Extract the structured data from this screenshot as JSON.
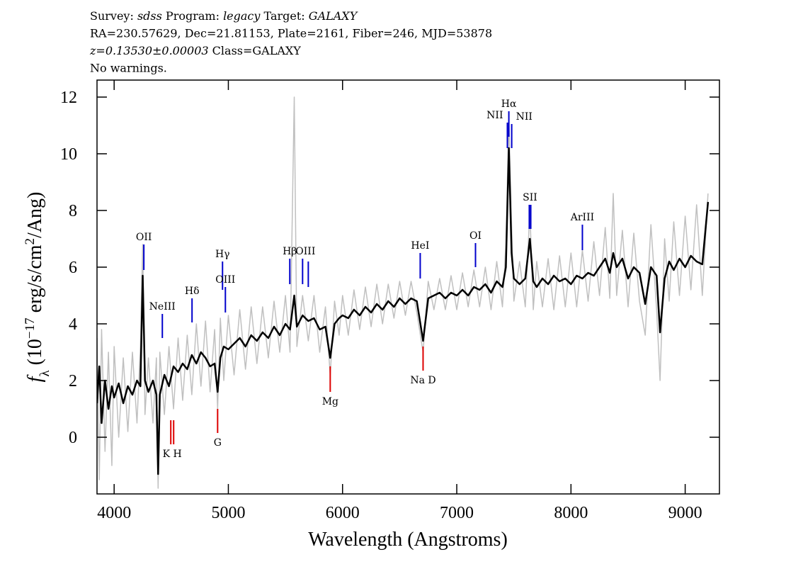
{
  "chart_data": {
    "type": "line",
    "header_lines": [
      [
        {
          "text": "Survey:"
        },
        {
          "text": "sdss",
          "italic": true
        },
        {
          "text": "Program:"
        },
        {
          "text": "legacy",
          "italic": true
        },
        {
          "text": "Target:"
        },
        {
          "text": "GALAXY",
          "italic": true
        }
      ],
      [
        {
          "text": "RA=230.57629, Dec=21.81153, Plate=2161, Fiber=246, MJD=53878"
        }
      ],
      [
        {
          "text": "z=0.13530±0.00003",
          "italic": true
        },
        {
          "text": "Class=GALAXY"
        }
      ],
      [
        {
          "text": "No warnings."
        }
      ]
    ],
    "xlabel": "Wavelength (Angstroms)",
    "ylabel_parts": [
      {
        "text": "f",
        "italic": true
      },
      {
        "text": "λ",
        "sub": true
      },
      {
        "text": " (10"
      },
      {
        "text": "−17",
        "sup": true
      },
      {
        "text": " erg/s/cm"
      },
      {
        "text": "2",
        "sup": true
      },
      {
        "text": "/Ang)"
      }
    ],
    "xlim": [
      3850,
      9300
    ],
    "ylim": [
      -2,
      12.6
    ],
    "xticks": [
      4000,
      5000,
      6000,
      7000,
      8000,
      9000
    ],
    "yticks": [
      0,
      2,
      4,
      6,
      8,
      10,
      12
    ],
    "x": [
      3850,
      3870,
      3890,
      3920,
      3950,
      3980,
      4000,
      4040,
      4080,
      4120,
      4160,
      4200,
      4230,
      4250,
      4270,
      4300,
      4340,
      4370,
      4385,
      4400,
      4440,
      4480,
      4520,
      4560,
      4600,
      4640,
      4680,
      4720,
      4760,
      4800,
      4840,
      4880,
      4906,
      4930,
      4960,
      5000,
      5050,
      5100,
      5150,
      5200,
      5250,
      5300,
      5350,
      5400,
      5450,
      5500,
      5540,
      5577,
      5600,
      5650,
      5700,
      5750,
      5800,
      5850,
      5892,
      5930,
      5970,
      6000,
      6050,
      6100,
      6150,
      6200,
      6250,
      6300,
      6350,
      6400,
      6450,
      6500,
      6550,
      6600,
      6650,
      6705,
      6750,
      6800,
      6850,
      6900,
      6950,
      7000,
      7050,
      7100,
      7150,
      7200,
      7250,
      7300,
      7350,
      7400,
      7430,
      7456,
      7480,
      7500,
      7550,
      7600,
      7640,
      7670,
      7700,
      7750,
      7800,
      7850,
      7900,
      7950,
      8000,
      8050,
      8100,
      8150,
      8200,
      8250,
      8300,
      8340,
      8370,
      8400,
      8450,
      8500,
      8550,
      8600,
      8650,
      8700,
      8750,
      8780,
      8820,
      8860,
      8900,
      8950,
      9000,
      9050,
      9100,
      9150,
      9200
    ],
    "series": [
      {
        "color": "#c0c0c0",
        "width": 1.5,
        "values": [
          3.5,
          -1.5,
          3.8,
          -0.5,
          3.0,
          -1.0,
          3.2,
          0.0,
          2.8,
          0.2,
          3.0,
          0.5,
          3.2,
          6.8,
          0.8,
          2.8,
          0.5,
          2.8,
          -1.8,
          3.0,
          0.8,
          3.2,
          1.0,
          3.5,
          1.3,
          3.6,
          1.5,
          4.0,
          1.8,
          4.1,
          1.6,
          3.8,
          1.0,
          4.2,
          2.0,
          4.3,
          2.2,
          4.5,
          2.4,
          4.6,
          2.6,
          4.6,
          2.8,
          4.8,
          3.0,
          5.0,
          3.0,
          12.0,
          3.2,
          5.0,
          3.4,
          5.0,
          3.0,
          4.6,
          2.2,
          4.8,
          3.6,
          5.0,
          3.6,
          5.2,
          3.8,
          5.3,
          3.9,
          5.4,
          4.0,
          5.4,
          4.2,
          5.5,
          4.3,
          5.5,
          4.4,
          3.0,
          5.5,
          4.5,
          5.6,
          4.5,
          5.7,
          4.5,
          5.8,
          4.6,
          5.9,
          4.6,
          6.0,
          4.5,
          6.2,
          4.6,
          6.8,
          11.2,
          7.5,
          4.8,
          6.2,
          4.6,
          8.0,
          4.5,
          6.2,
          4.6,
          6.3,
          4.5,
          6.4,
          4.6,
          6.5,
          4.6,
          6.6,
          4.8,
          6.9,
          5.0,
          7.4,
          4.9,
          8.6,
          5.0,
          7.3,
          4.6,
          7.2,
          4.8,
          3.6,
          7.5,
          4.5,
          2.0,
          7.0,
          4.8,
          7.6,
          5.0,
          7.8,
          5.2,
          8.2,
          5.0,
          8.6
        ]
      },
      {
        "color": "#000000",
        "width": 2.5,
        "values": [
          1.2,
          2.5,
          0.5,
          2.0,
          1.0,
          1.8,
          1.4,
          1.9,
          1.2,
          1.8,
          1.5,
          2.0,
          1.8,
          5.7,
          2.0,
          1.6,
          2.0,
          1.5,
          -1.3,
          1.5,
          2.2,
          1.8,
          2.5,
          2.3,
          2.6,
          2.4,
          2.9,
          2.6,
          3.0,
          2.8,
          2.5,
          2.6,
          1.6,
          2.8,
          3.2,
          3.1,
          3.3,
          3.5,
          3.2,
          3.6,
          3.4,
          3.7,
          3.5,
          3.9,
          3.6,
          4.0,
          3.8,
          5.0,
          3.9,
          4.3,
          4.1,
          4.2,
          3.8,
          3.9,
          2.8,
          4.0,
          4.2,
          4.3,
          4.2,
          4.5,
          4.3,
          4.6,
          4.4,
          4.7,
          4.5,
          4.8,
          4.6,
          4.9,
          4.7,
          4.9,
          4.8,
          3.4,
          4.9,
          5.0,
          5.1,
          4.9,
          5.1,
          5.0,
          5.2,
          5.0,
          5.3,
          5.2,
          5.4,
          5.1,
          5.5,
          5.3,
          6.0,
          10.2,
          6.5,
          5.6,
          5.4,
          5.6,
          7.0,
          5.5,
          5.3,
          5.6,
          5.4,
          5.7,
          5.5,
          5.6,
          5.4,
          5.7,
          5.6,
          5.8,
          5.7,
          6.0,
          6.3,
          5.8,
          6.5,
          6.0,
          6.3,
          5.6,
          6.0,
          5.8,
          4.7,
          6.0,
          5.7,
          3.7,
          5.6,
          6.2,
          5.9,
          6.3,
          6.0,
          6.4,
          6.2,
          6.1,
          8.3
        ]
      }
    ],
    "annotations": [
      {
        "label": "OII",
        "color": "#0000cc",
        "lines": [
          {
            "x": 4260,
            "y1": 6.8,
            "y2": 5.9
          }
        ]
      },
      {
        "label": "NeIII",
        "color": "#0000cc",
        "lines": [
          {
            "x": 4422,
            "y1": 4.35,
            "y2": 3.5
          }
        ]
      },
      {
        "label": "Hδ",
        "color": "#0000cc",
        "lines": [
          {
            "x": 4682,
            "y1": 4.9,
            "y2": 4.05
          }
        ]
      },
      {
        "label": "Hγ",
        "color": "#0000cc",
        "lines": [
          {
            "x": 4949,
            "y1": 6.2,
            "y2": 5.2
          }
        ]
      },
      {
        "label": "OIII",
        "color": "#0000cc",
        "lines": [
          {
            "x": 4974,
            "y1": 5.3,
            "y2": 4.4
          }
        ]
      },
      {
        "label": "Hβ",
        "color": "#0000cc",
        "lines": [
          {
            "x": 5538,
            "y1": 6.3,
            "y2": 5.4
          }
        ]
      },
      {
        "label": "OIII",
        "color": "#0000cc",
        "lines": [
          {
            "x": 5650,
            "y1": 6.3,
            "y2": 5.4
          },
          {
            "x": 5700,
            "y1": 6.2,
            "y2": 5.3
          }
        ]
      },
      {
        "label": "HeI",
        "color": "#0000cc",
        "lines": [
          {
            "x": 6680,
            "y1": 6.5,
            "y2": 5.6
          }
        ]
      },
      {
        "label": "OI",
        "color": "#0000cc",
        "lines": [
          {
            "x": 7164,
            "y1": 6.85,
            "y2": 6.0
          }
        ]
      },
      {
        "label": "NII",
        "color": "#0000cc",
        "anchor": "end",
        "lines": [
          {
            "x": 7443,
            "y1": 11.1,
            "y2": 10.2
          }
        ]
      },
      {
        "label": "Hα",
        "color": "#0000cc",
        "lines": [
          {
            "x": 7456,
            "y1": 11.5,
            "y2": 10.6
          }
        ]
      },
      {
        "label": "NII",
        "color": "#0000cc",
        "anchor": "start",
        "lines": [
          {
            "x": 7481,
            "y1": 11.05,
            "y2": 10.2
          }
        ]
      },
      {
        "label": "SII",
        "color": "#0000cc",
        "lines": [
          {
            "x": 7635,
            "y1": 8.2,
            "y2": 7.35
          },
          {
            "x": 7648,
            "y1": 8.2,
            "y2": 7.35
          }
        ]
      },
      {
        "label": "ArIII",
        "color": "#0000cc",
        "lines": [
          {
            "x": 8100,
            "y1": 7.5,
            "y2": 6.6
          }
        ]
      },
      {
        "label": "K H",
        "color": "#dd0000",
        "lines": [
          {
            "x": 4496,
            "y1": 0.6,
            "y2": -0.25
          },
          {
            "x": 4521,
            "y1": 0.6,
            "y2": -0.25
          }
        ]
      },
      {
        "label": "G",
        "color": "#dd0000",
        "lines": [
          {
            "x": 4906,
            "y1": 1.0,
            "y2": 0.15
          }
        ]
      },
      {
        "label": "Mg",
        "color": "#dd0000",
        "lines": [
          {
            "x": 5892,
            "y1": 2.5,
            "y2": 1.6
          }
        ]
      },
      {
        "label": "Na D",
        "color": "#dd0000",
        "lines": [
          {
            "x": 6705,
            "y1": 3.2,
            "y2": 2.35
          }
        ]
      }
    ]
  }
}
